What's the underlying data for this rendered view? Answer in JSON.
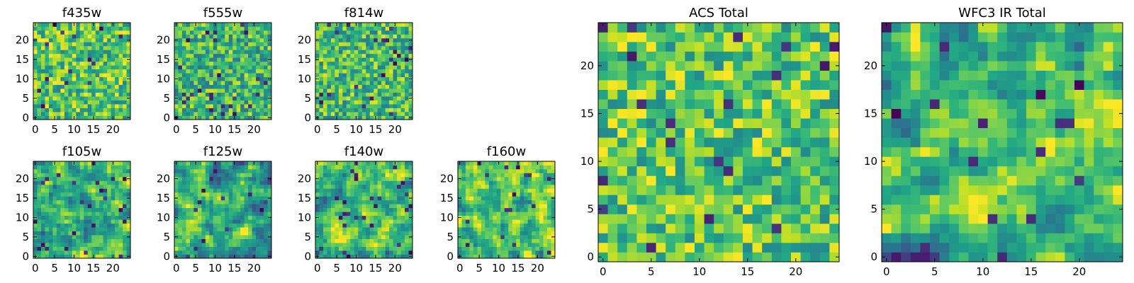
{
  "chart_data": [
    {
      "type": "heatmap",
      "title": "f435w",
      "grid_size": 25,
      "xticks": [
        0,
        5,
        10,
        15,
        20
      ],
      "yticks": [
        0,
        5,
        10,
        15,
        20
      ],
      "xlim": [
        -0.5,
        24.5
      ],
      "ylim": [
        -0.5,
        24.5
      ],
      "colormap": "viridis",
      "smoothness": 0,
      "brightness": 0.72,
      "seed": 11
    },
    {
      "type": "heatmap",
      "title": "f555w",
      "grid_size": 25,
      "xticks": [
        0,
        5,
        10,
        15,
        20
      ],
      "yticks": [
        0,
        5,
        10,
        15,
        20
      ],
      "xlim": [
        -0.5,
        24.5
      ],
      "ylim": [
        -0.5,
        24.5
      ],
      "colormap": "viridis",
      "smoothness": 0,
      "brightness": 0.66,
      "seed": 23
    },
    {
      "type": "heatmap",
      "title": "f814w",
      "grid_size": 25,
      "xticks": [
        0,
        5,
        10,
        15,
        20
      ],
      "yticks": [
        0,
        5,
        10,
        15,
        20
      ],
      "xlim": [
        -0.5,
        24.5
      ],
      "ylim": [
        -0.5,
        24.5
      ],
      "colormap": "viridis",
      "smoothness": 0,
      "brightness": 0.68,
      "seed": 37
    },
    {
      "type": "heatmap",
      "title": "f105w",
      "grid_size": 25,
      "xticks": [
        0,
        5,
        10,
        15,
        20
      ],
      "yticks": [
        0,
        5,
        10,
        15,
        20
      ],
      "xlim": [
        -0.5,
        24.5
      ],
      "ylim": [
        -0.5,
        24.5
      ],
      "colormap": "viridis",
      "smoothness": 1,
      "brightness": 0.64,
      "seed": 41
    },
    {
      "type": "heatmap",
      "title": "f125w",
      "grid_size": 25,
      "xticks": [
        0,
        5,
        10,
        15,
        20
      ],
      "yticks": [
        0,
        5,
        10,
        15,
        20
      ],
      "xlim": [
        -0.5,
        24.5
      ],
      "ylim": [
        -0.5,
        24.5
      ],
      "colormap": "viridis",
      "smoothness": 1,
      "brightness": 0.62,
      "seed": 53
    },
    {
      "type": "heatmap",
      "title": "f140w",
      "grid_size": 25,
      "xticks": [
        0,
        5,
        10,
        15,
        20
      ],
      "yticks": [
        0,
        5,
        10,
        15,
        20
      ],
      "xlim": [
        -0.5,
        24.5
      ],
      "ylim": [
        -0.5,
        24.5
      ],
      "colormap": "viridis",
      "smoothness": 1,
      "brightness": 0.7,
      "seed": 67
    },
    {
      "type": "heatmap",
      "title": "f160w",
      "grid_size": 25,
      "xticks": [
        0,
        5,
        10,
        15,
        20
      ],
      "yticks": [
        0,
        5,
        10,
        15,
        20
      ],
      "xlim": [
        -0.5,
        24.5
      ],
      "ylim": [
        -0.5,
        24.5
      ],
      "colormap": "viridis",
      "smoothness": 1,
      "brightness": 0.74,
      "seed": 79
    },
    {
      "type": "heatmap",
      "title": "ACS Total",
      "grid_size": 25,
      "xticks": [
        0,
        5,
        10,
        15,
        20
      ],
      "yticks": [
        0,
        5,
        10,
        15,
        20
      ],
      "xlim": [
        -0.5,
        24.5
      ],
      "ylim": [
        -0.5,
        24.5
      ],
      "colormap": "viridis",
      "smoothness": 0,
      "brightness": 0.74,
      "seed": 83
    },
    {
      "type": "heatmap",
      "title": "WFC3 IR Total",
      "grid_size": 25,
      "xticks": [
        0,
        5,
        10,
        15,
        20
      ],
      "yticks": [
        0,
        5,
        10,
        15,
        20
      ],
      "xlim": [
        -0.5,
        24.5
      ],
      "ylim": [
        -0.5,
        24.5
      ],
      "colormap": "viridis",
      "smoothness": 1,
      "brightness": 0.66,
      "seed": 97
    }
  ]
}
